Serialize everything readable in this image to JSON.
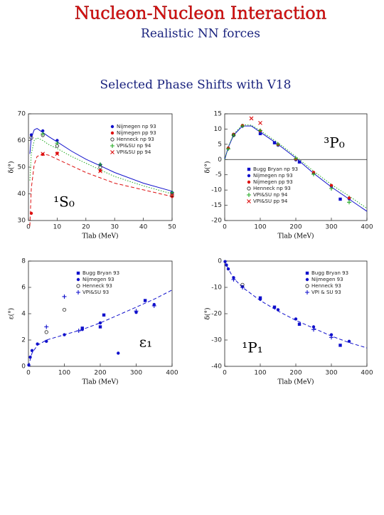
{
  "header": {
    "title": "Nucleon-Nucleon Interaction",
    "subtitle": "Realistic NN forces",
    "section": "Selected Phase Shifts with V18"
  },
  "chart_data": [
    {
      "type": "line",
      "annotation": "¹S₀",
      "xlabel": "Tlab (MeV)",
      "ylabel": "δ(°)",
      "xlim": [
        0,
        50
      ],
      "xticks": [
        0,
        10,
        20,
        30,
        40,
        50
      ],
      "ylim": [
        30,
        70
      ],
      "yticks": [
        30,
        40,
        50,
        60,
        70
      ],
      "series": [
        {
          "color": "#1010cc",
          "style": "solid",
          "x": [
            0.5,
            1,
            2,
            3,
            5,
            7,
            10,
            15,
            20,
            25,
            30,
            40,
            50
          ],
          "values": [
            55,
            61,
            64,
            64.5,
            63,
            61.5,
            59.5,
            56,
            53,
            50.5,
            48,
            44,
            41
          ]
        },
        {
          "color": "#dd1010",
          "style": "dashed",
          "x": [
            0.5,
            1,
            2,
            3,
            5,
            7,
            10,
            15,
            20,
            25,
            30,
            40,
            50
          ],
          "values": [
            28,
            42,
            51,
            54,
            55,
            54.5,
            53,
            50.5,
            48,
            46,
            44,
            41.5,
            39
          ]
        },
        {
          "color": "#22aa22",
          "style": "dotted",
          "x": [
            0.5,
            1,
            2,
            3,
            5,
            7,
            10,
            15,
            20,
            25,
            30,
            40,
            50
          ],
          "values": [
            45,
            55,
            60,
            61,
            60,
            58.5,
            57,
            54,
            51.5,
            49,
            46.5,
            43,
            40
          ]
        },
        {
          "name": "Nijmegen np 93",
          "color": "#1010cc",
          "style": "circle",
          "x": [
            1,
            5,
            10,
            25,
            50
          ],
          "values": [
            62.1,
            63.6,
            60,
            50.9,
            40.5
          ]
        },
        {
          "name": "Nijmegen pp 93",
          "color": "#dd1010",
          "style": "circle",
          "x": [
            1,
            5,
            10,
            25,
            50
          ],
          "values": [
            32.7,
            54.8,
            55.2,
            48.7,
            39
          ]
        },
        {
          "name": "Henneck np 93",
          "color": "#222222",
          "style": "open-circle",
          "x": [
            1,
            5,
            10,
            25,
            50
          ],
          "values": [
            61,
            62,
            58,
            50,
            39.5
          ]
        },
        {
          "name": "VPI&SU np 94",
          "color": "#22aa22",
          "style": "plus",
          "x": [
            5,
            10,
            25,
            50
          ],
          "values": [
            62.5,
            59,
            51,
            40.5
          ]
        },
        {
          "name": "VPI&SU pp 94",
          "color": "#dd1010",
          "style": "cross",
          "x": [
            5,
            10,
            25,
            50
          ],
          "values": [
            55,
            55,
            48.5,
            39.5
          ]
        }
      ]
    },
    {
      "type": "line",
      "annotation": "³P₀",
      "xlabel": "Tlab (MeV)",
      "ylabel": "δ(°)",
      "zero_line": true,
      "xlim": [
        0,
        400
      ],
      "xticks": [
        0,
        100,
        200,
        300,
        400
      ],
      "ylim": [
        -20,
        15
      ],
      "yticks": [
        -20,
        -15,
        -10,
        -5,
        0,
        5,
        10,
        15
      ],
      "series": [
        {
          "color": "#1010cc",
          "style": "solid",
          "x": [
            0,
            10,
            25,
            50,
            75,
            100,
            150,
            200,
            250,
            300,
            350,
            400
          ],
          "values": [
            0,
            4,
            8,
            11,
            11,
            9,
            5,
            0.5,
            -4.5,
            -9,
            -13,
            -17
          ]
        },
        {
          "color": "#22aa22",
          "style": "dotted",
          "x": [
            0,
            10,
            25,
            50,
            75,
            100,
            150,
            200,
            250,
            300,
            350,
            400
          ],
          "values": [
            0,
            4.2,
            8.3,
            11.4,
            11.3,
            9.5,
            5.5,
            1,
            -3.8,
            -8.2,
            -12,
            -16
          ]
        },
        {
          "name": "Bugg Bryan np 93",
          "color": "#1010cc",
          "style": "square",
          "x": [
            100,
            140,
            210,
            325
          ],
          "values": [
            8.5,
            5.5,
            -0.8,
            -13
          ]
        },
        {
          "name": "Nijmegen np 93",
          "color": "#1010cc",
          "style": "circle",
          "x": [
            10,
            25,
            50,
            100,
            150,
            200,
            250,
            300,
            350
          ],
          "values": [
            3.7,
            8.1,
            11,
            9.3,
            4.7,
            -0.1,
            -4.5,
            -8.8,
            -12.9
          ]
        },
        {
          "name": "Nijmegen pp 93",
          "color": "#dd1010",
          "style": "circle",
          "x": [
            10,
            25,
            50,
            100,
            150,
            200,
            250,
            300,
            350
          ],
          "values": [
            3.8,
            8.3,
            11.2,
            9.4,
            4.9,
            0.1,
            -4.2,
            -8.5,
            -12.6
          ]
        },
        {
          "name": "Henneck np 93",
          "color": "#222222",
          "style": "open-circle",
          "x": [
            25
          ],
          "values": [
            8
          ]
        },
        {
          "name": "VPI&SU np 94",
          "color": "#22aa22",
          "style": "plus",
          "x": [
            10,
            25,
            50,
            100,
            150,
            200,
            250,
            300,
            350
          ],
          "values": [
            3.5,
            8,
            11,
            9.5,
            5,
            0.3,
            -4.8,
            -9.5,
            -14
          ]
        },
        {
          "name": "VPI&SU pp 94",
          "color": "#dd1010",
          "style": "cross",
          "x": [
            75,
            100
          ],
          "values": [
            13.5,
            12
          ]
        }
      ]
    },
    {
      "type": "line",
      "annotation": "ε₁",
      "xlabel": "Tlab (MeV)",
      "ylabel": "ε(°)",
      "xlim": [
        0,
        400
      ],
      "xticks": [
        0,
        100,
        200,
        300,
        400
      ],
      "ylim": [
        0,
        8
      ],
      "yticks": [
        0,
        2,
        4,
        6,
        8
      ],
      "series": [
        {
          "color": "#1010cc",
          "style": "dashed",
          "x": [
            0,
            10,
            25,
            50,
            100,
            150,
            200,
            250,
            300,
            350,
            400
          ],
          "values": [
            0,
            1,
            1.6,
            2,
            2.4,
            2.8,
            3.3,
            3.9,
            4.5,
            5.1,
            5.8
          ]
        },
        {
          "name": "Bugg Bryan 93",
          "color": "#1010cc",
          "style": "square",
          "x": [
            150,
            200,
            210,
            325
          ],
          "values": [
            2.9,
            3,
            3.9,
            5
          ]
        },
        {
          "name": "Nijmegen 93",
          "color": "#1010cc",
          "style": "circle",
          "x": [
            1,
            5,
            10,
            25,
            50,
            100,
            150,
            200,
            250,
            300,
            350
          ],
          "values": [
            0.1,
            0.7,
            1.2,
            1.7,
            1.9,
            2.4,
            2.8,
            3.3,
            1,
            4.1,
            4.7
          ]
        },
        {
          "name": "Henneck 93",
          "color": "#222222",
          "style": "open-circle",
          "x": [
            50,
            100
          ],
          "values": [
            2.6,
            4.3
          ]
        },
        {
          "name": "VPI&SU 93",
          "color": "#1010cc",
          "style": "plus",
          "x": [
            50,
            100,
            140,
            300,
            350
          ],
          "values": [
            3,
            5.3,
            2.7,
            4.2,
            4.6
          ]
        }
      ]
    },
    {
      "type": "line",
      "annotation": "¹P₁",
      "xlabel": "Tlab (MeV)",
      "ylabel": "δ(°)",
      "xlim": [
        0,
        400
      ],
      "xticks": [
        0,
        100,
        200,
        300,
        400
      ],
      "ylim": [
        -40,
        0
      ],
      "yticks": [
        -40,
        -30,
        -20,
        -10,
        0
      ],
      "series": [
        {
          "color": "#1010cc",
          "style": "dashed",
          "x": [
            0,
            10,
            25,
            50,
            100,
            150,
            200,
            250,
            300,
            350,
            400
          ],
          "values": [
            0,
            -3,
            -6.5,
            -10,
            -15,
            -19,
            -22.5,
            -25.5,
            -28.5,
            -31,
            -33
          ]
        },
        {
          "name": "Bugg Bryan 93",
          "color": "#1010cc",
          "style": "square",
          "x": [
            100,
            140,
            210,
            325
          ],
          "values": [
            -14,
            -17.5,
            -24,
            -32
          ]
        },
        {
          "name": "Nijmegen 93",
          "color": "#1010cc",
          "style": "circle",
          "x": [
            1,
            5,
            10,
            25,
            50,
            100,
            150,
            200,
            250,
            300,
            350
          ],
          "values": [
            -0.2,
            -1.5,
            -3,
            -6.3,
            -9.7,
            -14.5,
            -18.5,
            -22,
            -25,
            -28,
            -30.5
          ]
        },
        {
          "name": "Henneck 93",
          "color": "#222222",
          "style": "open-circle",
          "x": [
            50
          ],
          "values": [
            -9
          ]
        },
        {
          "name": "VPI & SU 93",
          "color": "#1010cc",
          "style": "plus",
          "x": [
            25,
            50,
            250,
            300
          ],
          "values": [
            -7,
            -10,
            -26,
            -29
          ]
        }
      ]
    }
  ]
}
